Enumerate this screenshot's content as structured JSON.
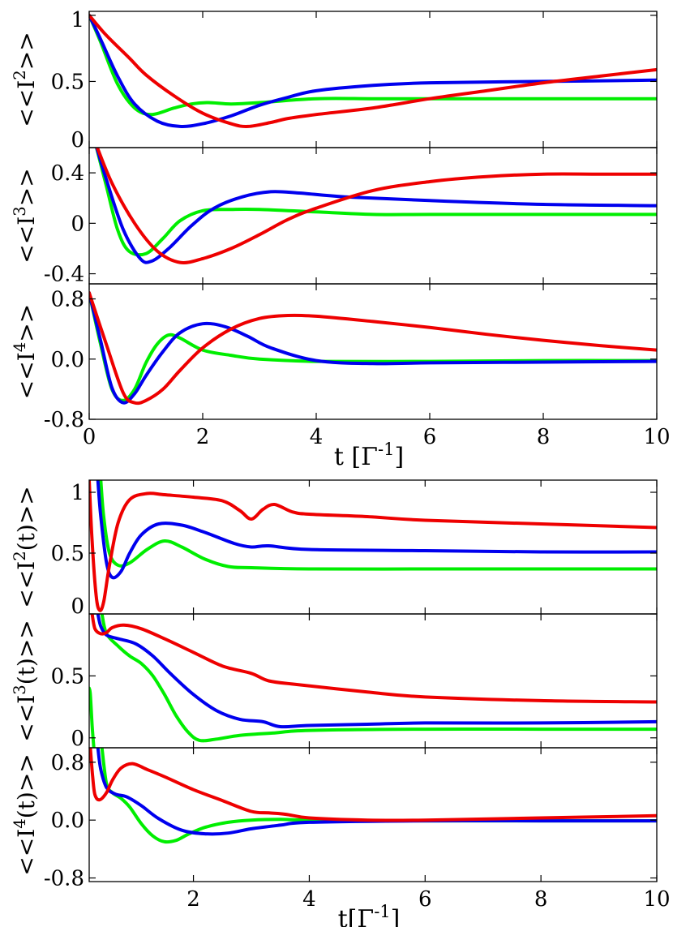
{
  "chart_data": [
    {
      "type": "line",
      "group": "upper",
      "ylabel": "<<I2>>",
      "ylabel_base": "<<I",
      "ylabel_sup": "2",
      "ylabel_tail": ">>",
      "xlim": [
        0,
        10
      ],
      "ylim": [
        0,
        1.03
      ],
      "yticks": [
        0,
        0.5,
        1
      ],
      "ytick_labels": [
        "0",
        "0.5",
        "1"
      ],
      "series": [
        {
          "name": "green",
          "color": "#00ee00",
          "x": [
            0,
            0.2,
            0.5,
            0.8,
            1.1,
            1.5,
            1.8,
            2.1,
            2.5,
            3,
            4,
            5,
            6,
            8,
            10
          ],
          "y": [
            1,
            0.8,
            0.48,
            0.3,
            0.25,
            0.3,
            0.33,
            0.34,
            0.33,
            0.34,
            0.37,
            0.37,
            0.37,
            0.37,
            0.37
          ]
        },
        {
          "name": "blue",
          "color": "#0000ee",
          "x": [
            0,
            0.2,
            0.5,
            0.8,
            1.2,
            1.6,
            2,
            2.5,
            3,
            3.5,
            4,
            5,
            6,
            8,
            10
          ],
          "y": [
            1,
            0.82,
            0.54,
            0.33,
            0.2,
            0.16,
            0.18,
            0.24,
            0.32,
            0.38,
            0.43,
            0.47,
            0.49,
            0.5,
            0.51
          ]
        },
        {
          "name": "red",
          "color": "#ee0000",
          "x": [
            0,
            0.3,
            0.7,
            1,
            1.5,
            2,
            2.5,
            2.8,
            3.2,
            3.5,
            4,
            5,
            6,
            7,
            8,
            9,
            10
          ],
          "y": [
            1,
            0.85,
            0.68,
            0.55,
            0.39,
            0.26,
            0.18,
            0.16,
            0.19,
            0.22,
            0.25,
            0.3,
            0.37,
            0.43,
            0.49,
            0.54,
            0.59
          ]
        }
      ]
    },
    {
      "type": "line",
      "group": "upper",
      "ylabel": "<<I3>>",
      "ylabel_base": "<<I",
      "ylabel_sup": "3",
      "ylabel_tail": ">>",
      "xlim": [
        0,
        10
      ],
      "ylim": [
        -0.48,
        0.6
      ],
      "yticks": [
        -0.4,
        0,
        0.4
      ],
      "ytick_labels": [
        "-0.4",
        "0",
        "0.4"
      ],
      "series": [
        {
          "name": "green",
          "color": "#00ee00",
          "x": [
            0.1,
            0.3,
            0.5,
            0.7,
            1,
            1.3,
            1.6,
            2,
            2.5,
            3,
            4,
            5,
            6,
            8,
            10
          ],
          "y": [
            0.65,
            0.3,
            -0.05,
            -0.22,
            -0.24,
            -0.12,
            0.02,
            0.1,
            0.11,
            0.11,
            0.09,
            0.07,
            0.07,
            0.07,
            0.07
          ]
        },
        {
          "name": "blue",
          "color": "#0000ee",
          "x": [
            0.1,
            0.3,
            0.6,
            0.9,
            1.1,
            1.4,
            1.8,
            2.2,
            2.7,
            3.2,
            3.7,
            4.5,
            6,
            8,
            10
          ],
          "y": [
            0.65,
            0.35,
            -0.05,
            -0.28,
            -0.3,
            -0.2,
            -0.02,
            0.12,
            0.21,
            0.25,
            0.24,
            0.21,
            0.18,
            0.15,
            0.14
          ]
        },
        {
          "name": "red",
          "color": "#ee0000",
          "x": [
            0.1,
            0.4,
            0.8,
            1.2,
            1.6,
            2,
            2.5,
            3,
            3.5,
            4,
            5,
            6,
            7,
            8,
            9,
            10
          ],
          "y": [
            0.65,
            0.32,
            0.0,
            -0.22,
            -0.31,
            -0.28,
            -0.2,
            -0.09,
            0.03,
            0.12,
            0.26,
            0.33,
            0.37,
            0.39,
            0.39,
            0.39
          ]
        }
      ]
    },
    {
      "type": "line",
      "group": "upper",
      "ylabel": "<<I4>>",
      "ylabel_base": "<<I",
      "ylabel_sup": "4",
      "ylabel_tail": ">>",
      "xlim": [
        0,
        10
      ],
      "ylim": [
        -0.8,
        1.0
      ],
      "yticks": [
        -0.8,
        0.0,
        0.8
      ],
      "ytick_labels": [
        "-0.8",
        "0.0",
        "0.8"
      ],
      "xticks": [
        0,
        2,
        4,
        6,
        8,
        10
      ],
      "xtick_labels": [
        "0",
        "2",
        "4",
        "6",
        "8",
        "10"
      ],
      "xlabel": "t [Γ-1]",
      "xlabel_base": "t [Γ",
      "xlabel_sup": "-1",
      "xlabel_tail": "]",
      "series": [
        {
          "name": "green",
          "color": "#00ee00",
          "x": [
            0,
            0.2,
            0.4,
            0.6,
            0.8,
            1,
            1.2,
            1.4,
            1.6,
            2,
            2.5,
            3,
            4,
            6,
            8,
            10
          ],
          "y": [
            0.88,
            0.2,
            -0.4,
            -0.55,
            -0.4,
            -0.05,
            0.2,
            0.32,
            0.28,
            0.12,
            0.05,
            0.0,
            -0.03,
            -0.03,
            -0.02,
            -0.02
          ]
        },
        {
          "name": "blue",
          "color": "#0000ee",
          "x": [
            0,
            0.2,
            0.4,
            0.6,
            0.8,
            1,
            1.3,
            1.6,
            2,
            2.4,
            2.8,
            3.2,
            4,
            5,
            6,
            8,
            10
          ],
          "y": [
            0.88,
            0.25,
            -0.38,
            -0.58,
            -0.46,
            -0.22,
            0.1,
            0.35,
            0.47,
            0.43,
            0.3,
            0.15,
            -0.02,
            -0.06,
            -0.05,
            -0.04,
            -0.03
          ]
        },
        {
          "name": "red",
          "color": "#ee0000",
          "x": [
            0,
            0.3,
            0.6,
            0.8,
            1,
            1.3,
            1.6,
            2,
            2.5,
            3,
            3.5,
            4,
            5,
            6,
            7,
            8,
            9,
            10
          ],
          "y": [
            0.88,
            0.2,
            -0.45,
            -0.58,
            -0.55,
            -0.4,
            -0.15,
            0.15,
            0.4,
            0.54,
            0.58,
            0.57,
            0.5,
            0.42,
            0.33,
            0.25,
            0.18,
            0.12
          ]
        }
      ]
    },
    {
      "type": "line",
      "group": "lower",
      "ylabel": "<<I2(t)>>",
      "ylabel_base": "<<I",
      "ylabel_sup": "2",
      "ylabel_tail": "(t)>>",
      "xlim": [
        0.2,
        10
      ],
      "ylim": [
        0,
        1.1
      ],
      "yticks": [
        0,
        0.5,
        1
      ],
      "ytick_labels": [
        "0",
        "0.5",
        "1"
      ],
      "series": [
        {
          "name": "green",
          "color": "#00ee00",
          "x": [
            0.4,
            0.45,
            0.55,
            0.7,
            0.9,
            1.2,
            1.5,
            1.8,
            2.2,
            2.6,
            3,
            4,
            6,
            8,
            10
          ],
          "y": [
            1.1,
            0.8,
            0.5,
            0.4,
            0.42,
            0.53,
            0.6,
            0.55,
            0.45,
            0.39,
            0.38,
            0.37,
            0.37,
            0.37,
            0.37
          ]
        },
        {
          "name": "blue",
          "color": "#0000ee",
          "x": [
            0.35,
            0.4,
            0.5,
            0.6,
            0.75,
            0.9,
            1.1,
            1.4,
            1.8,
            2.2,
            2.7,
            3,
            3.3,
            4,
            6,
            8,
            10
          ],
          "y": [
            1.1,
            0.8,
            0.42,
            0.3,
            0.35,
            0.5,
            0.65,
            0.74,
            0.73,
            0.67,
            0.58,
            0.55,
            0.56,
            0.53,
            0.52,
            0.51,
            0.51
          ]
        },
        {
          "name": "red",
          "color": "#ee0000",
          "x": [
            0.2,
            0.25,
            0.32,
            0.38,
            0.45,
            0.55,
            0.7,
            0.9,
            1.2,
            1.5,
            2,
            2.5,
            2.8,
            3,
            3.2,
            3.4,
            3.7,
            4,
            5,
            6,
            8,
            10
          ],
          "y": [
            1.1,
            0.6,
            0.15,
            0.03,
            0.1,
            0.4,
            0.75,
            0.94,
            0.99,
            0.98,
            0.96,
            0.93,
            0.85,
            0.78,
            0.86,
            0.9,
            0.84,
            0.82,
            0.8,
            0.77,
            0.74,
            0.71
          ]
        }
      ]
    },
    {
      "type": "line",
      "group": "lower",
      "ylabel": "<<I3(t)>>",
      "ylabel_base": "<<I",
      "ylabel_sup": "3",
      "ylabel_tail": "(t)>>",
      "xlim": [
        0.2,
        10
      ],
      "ylim": [
        -0.08,
        1.0
      ],
      "yticks": [
        0,
        0.5
      ],
      "ytick_labels": [
        "0",
        "0.5"
      ],
      "series": [
        {
          "name": "green",
          "color": "#00ee00",
          "x": [
            0.42,
            0.5,
            0.7,
            0.9,
            1.1,
            1.3,
            1.5,
            1.7,
            1.9,
            2.1,
            2.4,
            2.8,
            3.4,
            4,
            6,
            8,
            10
          ],
          "y": [
            1.0,
            0.84,
            0.74,
            0.66,
            0.6,
            0.5,
            0.35,
            0.18,
            0.05,
            -0.02,
            -0.01,
            0.02,
            0.04,
            0.06,
            0.07,
            0.07,
            0.07
          ]
        },
        {
          "name": "blue",
          "color": "#0000ee",
          "x": [
            0.35,
            0.4,
            0.5,
            0.7,
            1,
            1.3,
            1.6,
            2,
            2.4,
            2.8,
            3.2,
            3.5,
            4,
            5,
            6,
            8,
            10
          ],
          "y": [
            1.0,
            0.9,
            0.83,
            0.8,
            0.76,
            0.66,
            0.52,
            0.35,
            0.22,
            0.15,
            0.13,
            0.09,
            0.1,
            0.11,
            0.12,
            0.12,
            0.13
          ]
        },
        {
          "name": "red",
          "color": "#ee0000",
          "x": [
            0.25,
            0.3,
            0.4,
            0.5,
            0.6,
            0.8,
            1.1,
            1.5,
            2,
            2.5,
            3,
            3.3,
            3.8,
            5,
            6,
            8,
            10
          ],
          "y": [
            1.0,
            0.88,
            0.84,
            0.85,
            0.89,
            0.91,
            0.88,
            0.8,
            0.69,
            0.58,
            0.52,
            0.46,
            0.43,
            0.37,
            0.33,
            0.3,
            0.29
          ]
        },
        {
          "name": "short",
          "color": "#00ee00",
          "x": [
            0.2,
            0.22,
            0.25,
            0.28
          ],
          "y": [
            0.4,
            0.35,
            0.1,
            -0.08
          ]
        }
      ]
    },
    {
      "type": "line",
      "group": "lower",
      "ylabel": "<<I4(t)>>",
      "ylabel_base": "<<I",
      "ylabel_sup": "4",
      "ylabel_tail": "(t)>>",
      "xlim": [
        0.2,
        10
      ],
      "ylim": [
        -0.85,
        1.0
      ],
      "yticks": [
        -0.8,
        0.0,
        0.8
      ],
      "ytick_labels": [
        "-0.8",
        "0.0",
        "0.8"
      ],
      "xticks": [
        2,
        4,
        6,
        8,
        10
      ],
      "xtick_labels": [
        "2",
        "4",
        "6",
        "8",
        "10"
      ],
      "xlabel": "t[Γ-1]",
      "xlabel_base": "t[Γ",
      "xlabel_sup": "-1",
      "xlabel_tail": "]",
      "series": [
        {
          "name": "green",
          "color": "#00ee00",
          "x": [
            0.42,
            0.5,
            0.6,
            0.75,
            0.9,
            1.1,
            1.3,
            1.5,
            1.7,
            1.9,
            2.2,
            2.6,
            3,
            3.5,
            4,
            6,
            8,
            10
          ],
          "y": [
            1.0,
            0.5,
            0.38,
            0.3,
            0.18,
            -0.05,
            -0.22,
            -0.3,
            -0.28,
            -0.2,
            -0.1,
            -0.03,
            0.0,
            0.01,
            0.0,
            -0.01,
            -0.01,
            -0.01
          ]
        },
        {
          "name": "blue",
          "color": "#0000ee",
          "x": [
            0.35,
            0.4,
            0.5,
            0.65,
            0.85,
            1.1,
            1.4,
            1.8,
            2.2,
            2.6,
            3,
            3.5,
            4,
            6,
            8,
            10
          ],
          "y": [
            1.0,
            0.7,
            0.45,
            0.36,
            0.32,
            0.2,
            0.02,
            -0.14,
            -0.19,
            -0.18,
            -0.12,
            -0.07,
            -0.03,
            -0.01,
            -0.01,
            -0.01
          ]
        },
        {
          "name": "red",
          "color": "#ee0000",
          "x": [
            0.22,
            0.26,
            0.3,
            0.38,
            0.5,
            0.6,
            0.75,
            0.95,
            1.2,
            1.5,
            2,
            2.5,
            3,
            3.3,
            3.6,
            4,
            5,
            6,
            8,
            10
          ],
          "y": [
            1.0,
            0.6,
            0.35,
            0.28,
            0.38,
            0.55,
            0.72,
            0.78,
            0.7,
            0.6,
            0.42,
            0.27,
            0.12,
            0.1,
            0.08,
            0.03,
            0.0,
            0.0,
            0.03,
            0.06
          ]
        }
      ]
    }
  ]
}
